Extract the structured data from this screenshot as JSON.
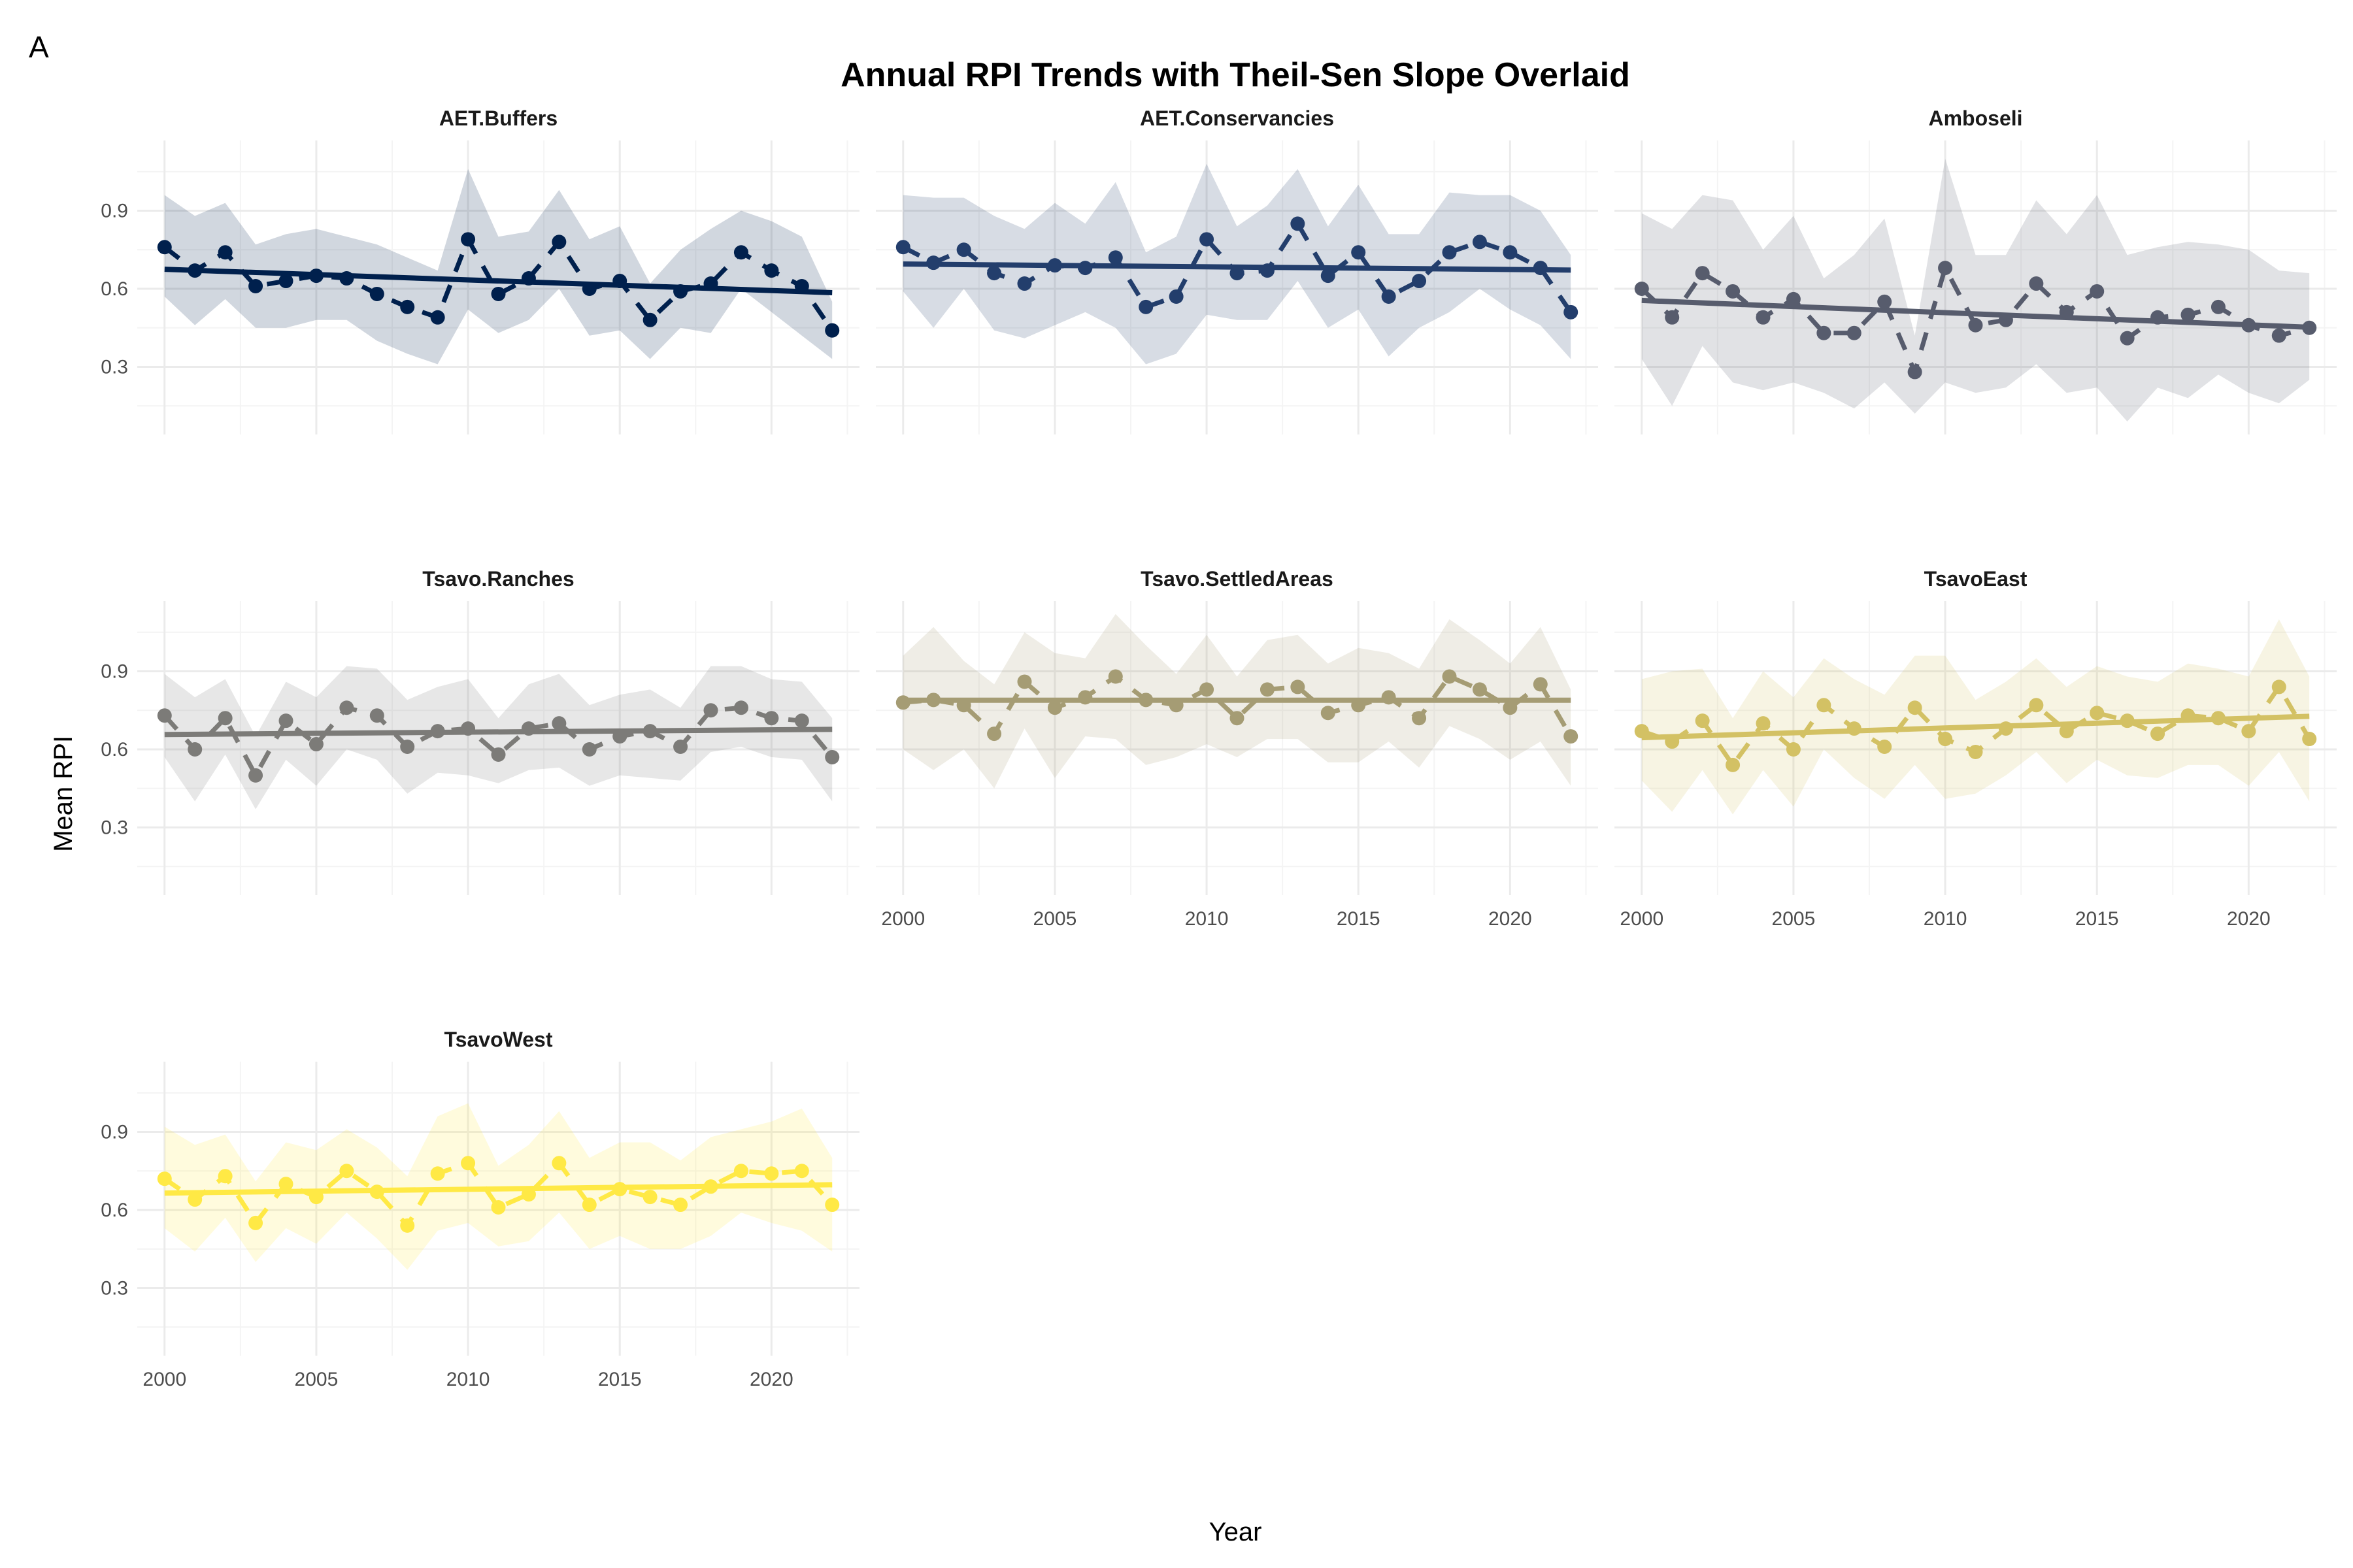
{
  "tag": "A",
  "chart_data": {
    "type": "line",
    "title": "Annual RPI Trends with Theil-Sen Slope Overlaid",
    "xlabel": "Year",
    "ylabel": "Mean RPI",
    "xlim": [
      1999.1,
      2022.9
    ],
    "ylim": [
      0.04,
      1.17
    ],
    "x_ticks": [
      2000,
      2005,
      2010,
      2015,
      2020
    ],
    "x_tick_labels": [
      "2000",
      "2005",
      "2010",
      "2015",
      "2020"
    ],
    "y_ticks": [
      0.3,
      0.6,
      0.9
    ],
    "y_tick_labels": [
      "0.3",
      "0.6",
      "0.9"
    ],
    "grid": true,
    "legend": "none",
    "years": [
      2000,
      2001,
      2002,
      2003,
      2004,
      2005,
      2006,
      2007,
      2008,
      2009,
      2010,
      2011,
      2012,
      2013,
      2014,
      2015,
      2016,
      2017,
      2018,
      2019,
      2020,
      2021,
      2022
    ],
    "panels": [
      {
        "name": "AET.Buffers",
        "color": "#00204D",
        "values": [
          0.76,
          0.67,
          0.74,
          0.61,
          0.63,
          0.65,
          0.64,
          0.58,
          0.53,
          0.49,
          0.79,
          0.58,
          0.64,
          0.78,
          0.6,
          0.63,
          0.48,
          0.59,
          0.62,
          0.74,
          0.67,
          0.61,
          0.44
        ],
        "upper": [
          0.96,
          0.88,
          0.93,
          0.77,
          0.81,
          0.83,
          0.8,
          0.77,
          0.72,
          0.67,
          1.06,
          0.8,
          0.82,
          0.98,
          0.79,
          0.84,
          0.62,
          0.75,
          0.83,
          0.9,
          0.86,
          0.8,
          0.55
        ],
        "lower": [
          0.57,
          0.46,
          0.56,
          0.45,
          0.45,
          0.48,
          0.48,
          0.4,
          0.35,
          0.31,
          0.52,
          0.43,
          0.48,
          0.6,
          0.42,
          0.44,
          0.33,
          0.45,
          0.43,
          0.6,
          0.51,
          0.42,
          0.33
        ],
        "trend": [
          0.675,
          0.585
        ]
      },
      {
        "name": "AET.Conservancies",
        "color": "#233E6C",
        "values": [
          0.76,
          0.7,
          0.75,
          0.66,
          0.62,
          0.69,
          0.68,
          0.72,
          0.53,
          0.57,
          0.79,
          0.66,
          0.67,
          0.85,
          0.65,
          0.74,
          0.57,
          0.63,
          0.74,
          0.78,
          0.74,
          0.68,
          0.51
        ],
        "upper": [
          0.96,
          0.95,
          0.95,
          0.88,
          0.83,
          0.93,
          0.85,
          1.01,
          0.74,
          0.8,
          1.08,
          0.84,
          0.92,
          1.06,
          0.84,
          1.0,
          0.81,
          0.81,
          0.97,
          0.96,
          0.96,
          0.9,
          0.73
        ],
        "lower": [
          0.59,
          0.45,
          0.6,
          0.44,
          0.41,
          0.46,
          0.51,
          0.45,
          0.31,
          0.35,
          0.5,
          0.48,
          0.48,
          0.63,
          0.45,
          0.52,
          0.34,
          0.45,
          0.51,
          0.6,
          0.52,
          0.46,
          0.33
        ],
        "trend": [
          0.695,
          0.672
        ]
      },
      {
        "name": "Amboseli",
        "color": "#575C6D",
        "values": [
          0.6,
          0.49,
          0.66,
          0.59,
          0.49,
          0.56,
          0.43,
          0.43,
          0.55,
          0.28,
          0.68,
          0.46,
          0.48,
          0.62,
          0.51,
          0.59,
          0.41,
          0.49,
          0.5,
          0.53,
          0.46,
          0.42,
          0.45
        ],
        "upper": [
          0.89,
          0.83,
          0.96,
          0.94,
          0.75,
          0.88,
          0.64,
          0.73,
          0.87,
          0.42,
          1.1,
          0.73,
          0.73,
          0.94,
          0.81,
          0.96,
          0.73,
          0.76,
          0.78,
          0.77,
          0.75,
          0.67,
          0.66
        ],
        "lower": [
          0.33,
          0.15,
          0.38,
          0.24,
          0.21,
          0.24,
          0.2,
          0.14,
          0.24,
          0.12,
          0.24,
          0.2,
          0.22,
          0.31,
          0.2,
          0.22,
          0.09,
          0.22,
          0.18,
          0.27,
          0.2,
          0.16,
          0.25
        ],
        "trend": [
          0.555,
          0.452
        ]
      },
      {
        "name": "Tsavo.Ranches",
        "color": "#7C7B78",
        "values": [
          0.73,
          0.6,
          0.72,
          0.5,
          0.71,
          0.62,
          0.76,
          0.73,
          0.61,
          0.67,
          0.68,
          0.58,
          0.68,
          0.7,
          0.6,
          0.65,
          0.67,
          0.61,
          0.75,
          0.76,
          0.72,
          0.71,
          0.57
        ],
        "upper": [
          0.89,
          0.8,
          0.87,
          0.65,
          0.86,
          0.8,
          0.92,
          0.91,
          0.79,
          0.84,
          0.87,
          0.72,
          0.85,
          0.89,
          0.77,
          0.81,
          0.83,
          0.76,
          0.92,
          0.92,
          0.87,
          0.86,
          0.72
        ],
        "lower": [
          0.57,
          0.4,
          0.58,
          0.37,
          0.56,
          0.46,
          0.6,
          0.56,
          0.43,
          0.51,
          0.5,
          0.47,
          0.52,
          0.53,
          0.46,
          0.5,
          0.49,
          0.48,
          0.59,
          0.61,
          0.57,
          0.56,
          0.4
        ],
        "trend": [
          0.657,
          0.677
        ]
      },
      {
        "name": "Tsavo.SettledAreas",
        "color": "#A59C74",
        "values": [
          0.78,
          0.79,
          0.77,
          0.66,
          0.86,
          0.76,
          0.8,
          0.88,
          0.79,
          0.77,
          0.83,
          0.72,
          0.83,
          0.84,
          0.74,
          0.77,
          0.8,
          0.72,
          0.88,
          0.83,
          0.76,
          0.85,
          0.65
        ],
        "upper": [
          0.96,
          1.07,
          0.94,
          0.85,
          1.05,
          0.97,
          0.95,
          1.12,
          1.0,
          0.89,
          1.04,
          0.88,
          1.02,
          1.04,
          0.93,
          0.99,
          0.97,
          0.91,
          1.1,
          1.02,
          0.93,
          1.07,
          0.83
        ],
        "lower": [
          0.6,
          0.52,
          0.6,
          0.45,
          0.68,
          0.49,
          0.65,
          0.64,
          0.54,
          0.57,
          0.62,
          0.57,
          0.64,
          0.64,
          0.55,
          0.55,
          0.63,
          0.53,
          0.69,
          0.64,
          0.56,
          0.63,
          0.46
        ],
        "trend": [
          0.789,
          0.789
        ]
      },
      {
        "name": "TsavoEast",
        "color": "#D3C164",
        "values": [
          0.67,
          0.63,
          0.71,
          0.54,
          0.7,
          0.6,
          0.77,
          0.68,
          0.61,
          0.76,
          0.64,
          0.59,
          0.68,
          0.77,
          0.67,
          0.74,
          0.71,
          0.66,
          0.73,
          0.72,
          0.67,
          0.84,
          0.64
        ],
        "upper": [
          0.87,
          0.9,
          0.91,
          0.72,
          0.9,
          0.8,
          0.95,
          0.87,
          0.81,
          0.96,
          0.96,
          0.79,
          0.86,
          0.95,
          0.84,
          0.92,
          0.88,
          0.86,
          0.93,
          0.91,
          0.88,
          1.1,
          0.88
        ],
        "lower": [
          0.48,
          0.36,
          0.52,
          0.35,
          0.52,
          0.38,
          0.6,
          0.49,
          0.41,
          0.54,
          0.41,
          0.43,
          0.5,
          0.59,
          0.47,
          0.56,
          0.5,
          0.49,
          0.54,
          0.54,
          0.46,
          0.59,
          0.4
        ],
        "trend": [
          0.645,
          0.727
        ]
      },
      {
        "name": "TsavoWest",
        "color": "#FFE945",
        "values": [
          0.72,
          0.64,
          0.73,
          0.55,
          0.7,
          0.65,
          0.75,
          0.67,
          0.54,
          0.74,
          0.78,
          0.61,
          0.66,
          0.78,
          0.62,
          0.68,
          0.65,
          0.62,
          0.69,
          0.75,
          0.74,
          0.75,
          0.62
        ],
        "upper": [
          0.92,
          0.85,
          0.89,
          0.71,
          0.86,
          0.83,
          0.91,
          0.84,
          0.73,
          0.96,
          1.01,
          0.77,
          0.85,
          0.98,
          0.8,
          0.86,
          0.86,
          0.79,
          0.88,
          0.91,
          0.94,
          0.99,
          0.8
        ],
        "lower": [
          0.53,
          0.44,
          0.57,
          0.4,
          0.53,
          0.47,
          0.59,
          0.49,
          0.37,
          0.52,
          0.55,
          0.46,
          0.48,
          0.59,
          0.45,
          0.5,
          0.45,
          0.45,
          0.5,
          0.59,
          0.55,
          0.52,
          0.44
        ],
        "trend": [
          0.665,
          0.697
        ]
      }
    ]
  }
}
